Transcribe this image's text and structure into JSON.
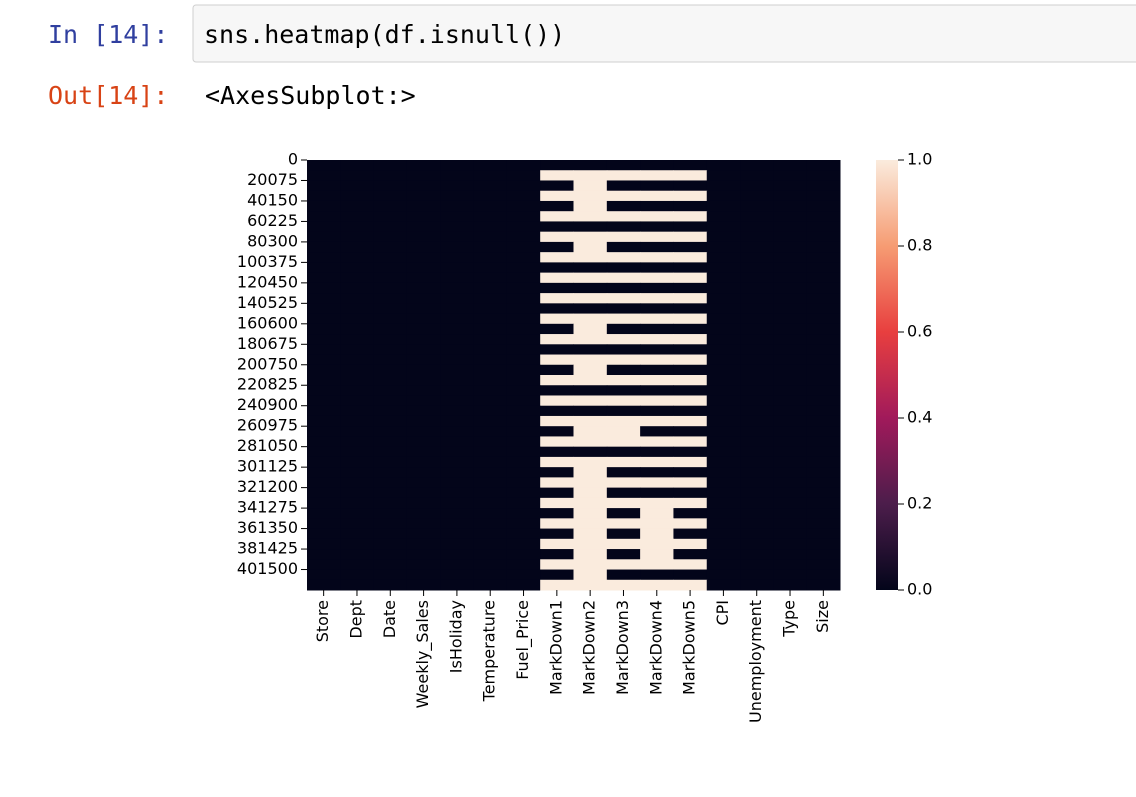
{
  "cell": {
    "prompt_in": "In [14]:",
    "code": "sns.heatmap(df.isnull())",
    "prompt_out": "Out[14]:",
    "output_text": "<AxesSubplot:>"
  },
  "chart_data": {
    "type": "heatmap",
    "categories": [
      "Store",
      "Dept",
      "Date",
      "Weekly_Sales",
      "IsHoliday",
      "Temperature",
      "Fuel_Price",
      "MarkDown1",
      "MarkDown2",
      "MarkDown3",
      "MarkDown4",
      "MarkDown5",
      "CPI",
      "Unemployment",
      "Type",
      "Size"
    ],
    "ylim": [
      0,
      421570
    ],
    "yticks": [
      0,
      20075,
      40150,
      60225,
      80300,
      100375,
      120450,
      140525,
      160600,
      180675,
      200750,
      220825,
      240900,
      260975,
      281050,
      301125,
      321200,
      341275,
      361350,
      381425,
      401500
    ],
    "bins": [
      0,
      10037,
      20075,
      30112,
      40150,
      50187,
      60224,
      70262,
      80299,
      90336,
      100374,
      110411,
      120449,
      130486,
      140523,
      150561,
      160598,
      170635,
      180673,
      190710,
      200748,
      210785,
      220823,
      230860,
      240897,
      250935,
      260972,
      271009,
      281047,
      291084,
      301121,
      311159,
      321196,
      331234,
      341271,
      351308,
      361346,
      371383,
      381421,
      391458,
      401495,
      411532,
      421570
    ],
    "values": [
      [
        0,
        0,
        0,
        0,
        0,
        0,
        0,
        0,
        0,
        0,
        0,
        0,
        0,
        0,
        0,
        0
      ],
      [
        0,
        0,
        0,
        0,
        0,
        0,
        0,
        1,
        1,
        1,
        1,
        1,
        0,
        0,
        0,
        0
      ],
      [
        0,
        0,
        0,
        0,
        0,
        0,
        0,
        0,
        1,
        0,
        0,
        0,
        0,
        0,
        0,
        0
      ],
      [
        0,
        0,
        0,
        0,
        0,
        0,
        0,
        1,
        1,
        1,
        1,
        1,
        0,
        0,
        0,
        0
      ],
      [
        0,
        0,
        0,
        0,
        0,
        0,
        0,
        0,
        1,
        0,
        0,
        0,
        0,
        0,
        0,
        0
      ],
      [
        0,
        0,
        0,
        0,
        0,
        0,
        0,
        1,
        1,
        1,
        1,
        1,
        0,
        0,
        0,
        0
      ],
      [
        0,
        0,
        0,
        0,
        0,
        0,
        0,
        0,
        0,
        0,
        0,
        0,
        0,
        0,
        0,
        0
      ],
      [
        0,
        0,
        0,
        0,
        0,
        0,
        0,
        1,
        1,
        1,
        1,
        1,
        0,
        0,
        0,
        0
      ],
      [
        0,
        0,
        0,
        0,
        0,
        0,
        0,
        0,
        1,
        0,
        0,
        0,
        0,
        0,
        0,
        0
      ],
      [
        0,
        0,
        0,
        0,
        0,
        0,
        0,
        1,
        1,
        1,
        1,
        1,
        0,
        0,
        0,
        0
      ],
      [
        0,
        0,
        0,
        0,
        0,
        0,
        0,
        0,
        0,
        0,
        0,
        0,
        0,
        0,
        0,
        0
      ],
      [
        0,
        0,
        0,
        0,
        0,
        0,
        0,
        1,
        1,
        1,
        1,
        1,
        0,
        0,
        0,
        0
      ],
      [
        0,
        0,
        0,
        0,
        0,
        0,
        0,
        0,
        0,
        0,
        0,
        0,
        0,
        0,
        0,
        0
      ],
      [
        0,
        0,
        0,
        0,
        0,
        0,
        0,
        1,
        1,
        1,
        1,
        1,
        0,
        0,
        0,
        0
      ],
      [
        0,
        0,
        0,
        0,
        0,
        0,
        0,
        0,
        0,
        0,
        0,
        0,
        0,
        0,
        0,
        0
      ],
      [
        0,
        0,
        0,
        0,
        0,
        0,
        0,
        1,
        1,
        1,
        1,
        1,
        0,
        0,
        0,
        0
      ],
      [
        0,
        0,
        0,
        0,
        0,
        0,
        0,
        0,
        1,
        0,
        0,
        0,
        0,
        0,
        0,
        0
      ],
      [
        0,
        0,
        0,
        0,
        0,
        0,
        0,
        1,
        1,
        1,
        1,
        1,
        0,
        0,
        0,
        0
      ],
      [
        0,
        0,
        0,
        0,
        0,
        0,
        0,
        0,
        0,
        0,
        0,
        0,
        0,
        0,
        0,
        0
      ],
      [
        0,
        0,
        0,
        0,
        0,
        0,
        0,
        1,
        1,
        1,
        1,
        1,
        0,
        0,
        0,
        0
      ],
      [
        0,
        0,
        0,
        0,
        0,
        0,
        0,
        0,
        1,
        0,
        0,
        0,
        0,
        0,
        0,
        0
      ],
      [
        0,
        0,
        0,
        0,
        0,
        0,
        0,
        1,
        1,
        1,
        1,
        1,
        0,
        0,
        0,
        0
      ],
      [
        0,
        0,
        0,
        0,
        0,
        0,
        0,
        0,
        0,
        0,
        0,
        0,
        0,
        0,
        0,
        0
      ],
      [
        0,
        0,
        0,
        0,
        0,
        0,
        0,
        1,
        1,
        1,
        1,
        1,
        0,
        0,
        0,
        0
      ],
      [
        0,
        0,
        0,
        0,
        0,
        0,
        0,
        0,
        0,
        0,
        0,
        0,
        0,
        0,
        0,
        0
      ],
      [
        0,
        0,
        0,
        0,
        0,
        0,
        0,
        1,
        1,
        1,
        1,
        1,
        0,
        0,
        0,
        0
      ],
      [
        0,
        0,
        0,
        0,
        0,
        0,
        0,
        0,
        1,
        1,
        0,
        0,
        0,
        0,
        0,
        0
      ],
      [
        0,
        0,
        0,
        0,
        0,
        0,
        0,
        1,
        1,
        1,
        1,
        1,
        0,
        0,
        0,
        0
      ],
      [
        0,
        0,
        0,
        0,
        0,
        0,
        0,
        0,
        0,
        0,
        0,
        0,
        0,
        0,
        0,
        0
      ],
      [
        0,
        0,
        0,
        0,
        0,
        0,
        0,
        1,
        1,
        1,
        1,
        1,
        0,
        0,
        0,
        0
      ],
      [
        0,
        0,
        0,
        0,
        0,
        0,
        0,
        0,
        1,
        0,
        0,
        0,
        0,
        0,
        0,
        0
      ],
      [
        0,
        0,
        0,
        0,
        0,
        0,
        0,
        1,
        1,
        1,
        1,
        1,
        0,
        0,
        0,
        0
      ],
      [
        0,
        0,
        0,
        0,
        0,
        0,
        0,
        0,
        1,
        0,
        0,
        0,
        0,
        0,
        0,
        0
      ],
      [
        0,
        0,
        0,
        0,
        0,
        0,
        0,
        1,
        1,
        1,
        1,
        1,
        0,
        0,
        0,
        0
      ],
      [
        0,
        0,
        0,
        0,
        0,
        0,
        0,
        0,
        1,
        0,
        1,
        0,
        0,
        0,
        0,
        0
      ],
      [
        0,
        0,
        0,
        0,
        0,
        0,
        0,
        1,
        1,
        1,
        1,
        1,
        0,
        0,
        0,
        0
      ],
      [
        0,
        0,
        0,
        0,
        0,
        0,
        0,
        0,
        1,
        0,
        1,
        0,
        0,
        0,
        0,
        0
      ],
      [
        0,
        0,
        0,
        0,
        0,
        0,
        0,
        1,
        1,
        1,
        1,
        1,
        0,
        0,
        0,
        0
      ],
      [
        0,
        0,
        0,
        0,
        0,
        0,
        0,
        0,
        1,
        0,
        1,
        0,
        0,
        0,
        0,
        0
      ],
      [
        0,
        0,
        0,
        0,
        0,
        0,
        0,
        1,
        1,
        1,
        1,
        1,
        0,
        0,
        0,
        0
      ],
      [
        0,
        0,
        0,
        0,
        0,
        0,
        0,
        0,
        1,
        0,
        0,
        0,
        0,
        0,
        0,
        0
      ],
      [
        0,
        0,
        0,
        0,
        0,
        0,
        0,
        1,
        1,
        1,
        1,
        1,
        0,
        0,
        0,
        0
      ]
    ],
    "clim": [
      0,
      1
    ],
    "cticks": [
      {
        "value": 0,
        "label": "0.0"
      },
      {
        "value": 0.2,
        "label": "0.2"
      },
      {
        "value": 0.4,
        "label": "0.4"
      },
      {
        "value": 0.6,
        "label": "0.6"
      },
      {
        "value": 0.8,
        "label": "0.8"
      },
      {
        "value": 1,
        "label": "1.0"
      }
    ],
    "colormap": [
      "#03051a",
      "#4c1d4b",
      "#a11a5b",
      "#e83f3f",
      "#f69c73",
      "#faebdd"
    ]
  }
}
